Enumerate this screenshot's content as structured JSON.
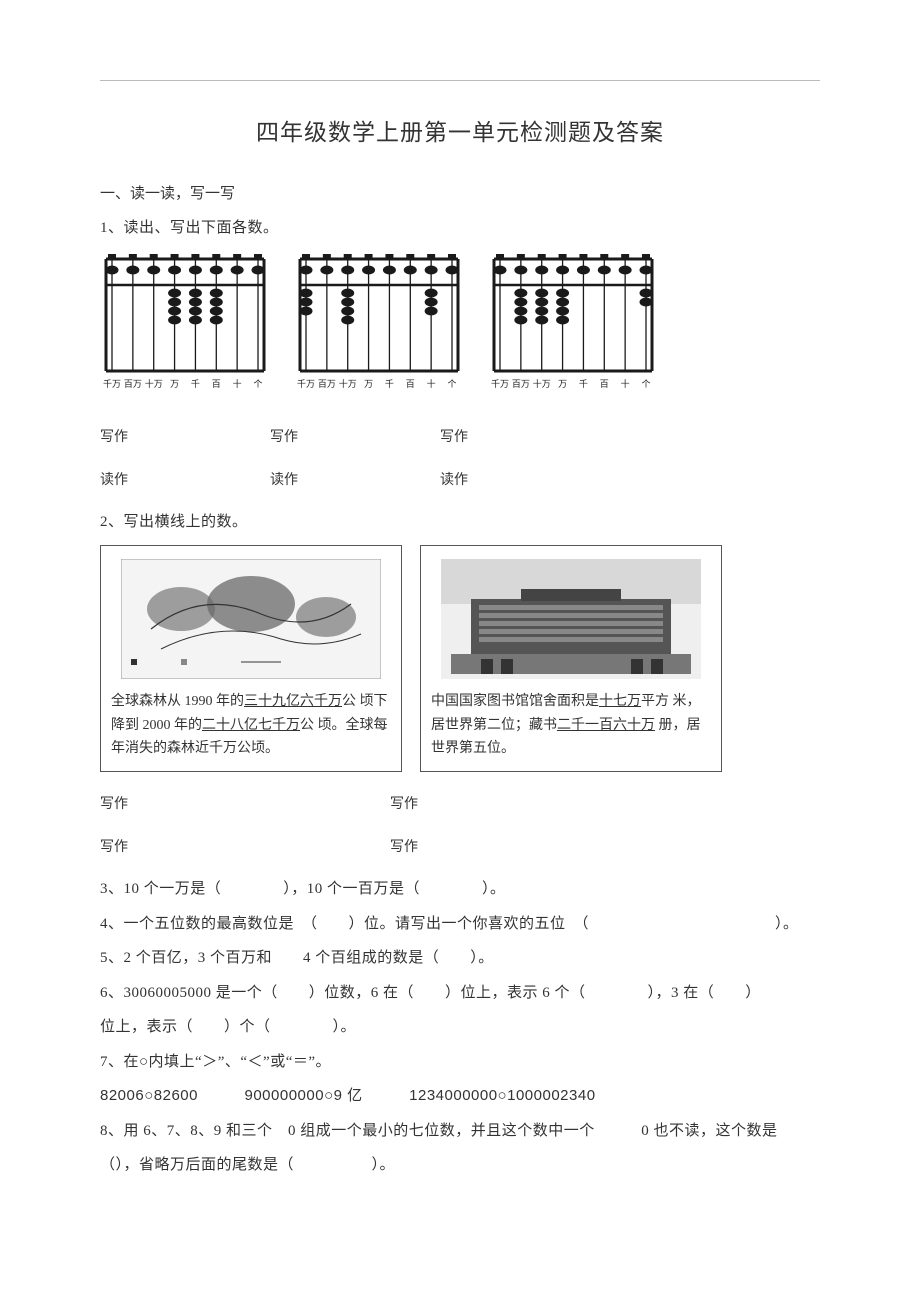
{
  "title": "四年级数学上册第一单元检测题及答案",
  "section1": {
    "heading": "一、读一读，写一写",
    "q1": {
      "label": "1、读出、写出下面各数。",
      "abacus_labels": [
        "千万",
        "百万",
        "十万",
        "万",
        "千",
        "百",
        "十",
        "个"
      ],
      "abacus_data": [
        {
          "upper": [
            0,
            0,
            0,
            0,
            0,
            0,
            0,
            0
          ],
          "lower": [
            0,
            0,
            0,
            4,
            4,
            4,
            0,
            0
          ]
        },
        {
          "upper": [
            0,
            0,
            0,
            0,
            0,
            0,
            0,
            0
          ],
          "lower": [
            3,
            0,
            4,
            0,
            0,
            0,
            3,
            0
          ]
        },
        {
          "upper": [
            0,
            0,
            0,
            0,
            0,
            0,
            0,
            0
          ],
          "lower": [
            0,
            4,
            4,
            4,
            0,
            0,
            0,
            2
          ]
        }
      ],
      "col_labels": {
        "write": "写作",
        "read": "读作"
      }
    },
    "q2": {
      "label": "2、写出横线上的数。",
      "card1": {
        "line1_pre": "全球森林从 1990 年的",
        "line1_u": "三十九亿六千万",
        "line1_post": "公",
        "line2_pre": "顷下降到 2000 年的",
        "line2_u": "二十八亿七千万",
        "line2_post": "公",
        "line3": "顷。全球每年消失的森林近千万公顷。",
        "legend_left": "■",
        "legend_text": ""
      },
      "card2": {
        "line1_pre": "中国国家图书馆馆舍面积是",
        "line1_u": "十七万",
        "line1_post": "平方",
        "line2_pre": "米，居世界第二位；藏书",
        "line2_u": "二千一百六十万",
        "line2_post": "",
        "line3": "册，居世界第五位。"
      },
      "write_label": "写作"
    },
    "q3": "3、10 个一万是（　　　　），10 个一百万是（　　　　）。",
    "q4": "4、一个五位数的最高数位是　（　　）位。请写出一个你喜欢的五位　（　　　　　　　　　　　　）。",
    "q5": "5、2 个百亿，3 个百万和　　4 个百组成的数是（　　）。",
    "q6_line1": "6、30060005000 是一个（　　）位数，6 在（　　）位上，表示 6 个（　　　　），3 在（　　）",
    "q6_line2": "位上，表示（　　）个（　　　　）。",
    "q7": "7、在○内填上“＞”、“＜”或“＝”。",
    "q7_items": "82006○82600　　　900000000○9 亿　　　1234000000○1000002340",
    "q8_line1": "8、用 6、7、8、9 和三个　0 组成一个最小的七位数，并且这个数中一个　　　0 也不读，这个数是",
    "q8_line2": "（），省略万后面的尾数是（　　　　　）。"
  },
  "style": {
    "page_bg": "#ffffff",
    "text_color": "#333333",
    "title_fontsize": 23,
    "body_fontsize": 15,
    "line_color": "#bbbbbb",
    "abacus_frame_color": "#1a1a1a",
    "abacus_bead_color": "#1a1a1a",
    "abacus_label_fontsize": 9,
    "card_border": "#555555"
  }
}
